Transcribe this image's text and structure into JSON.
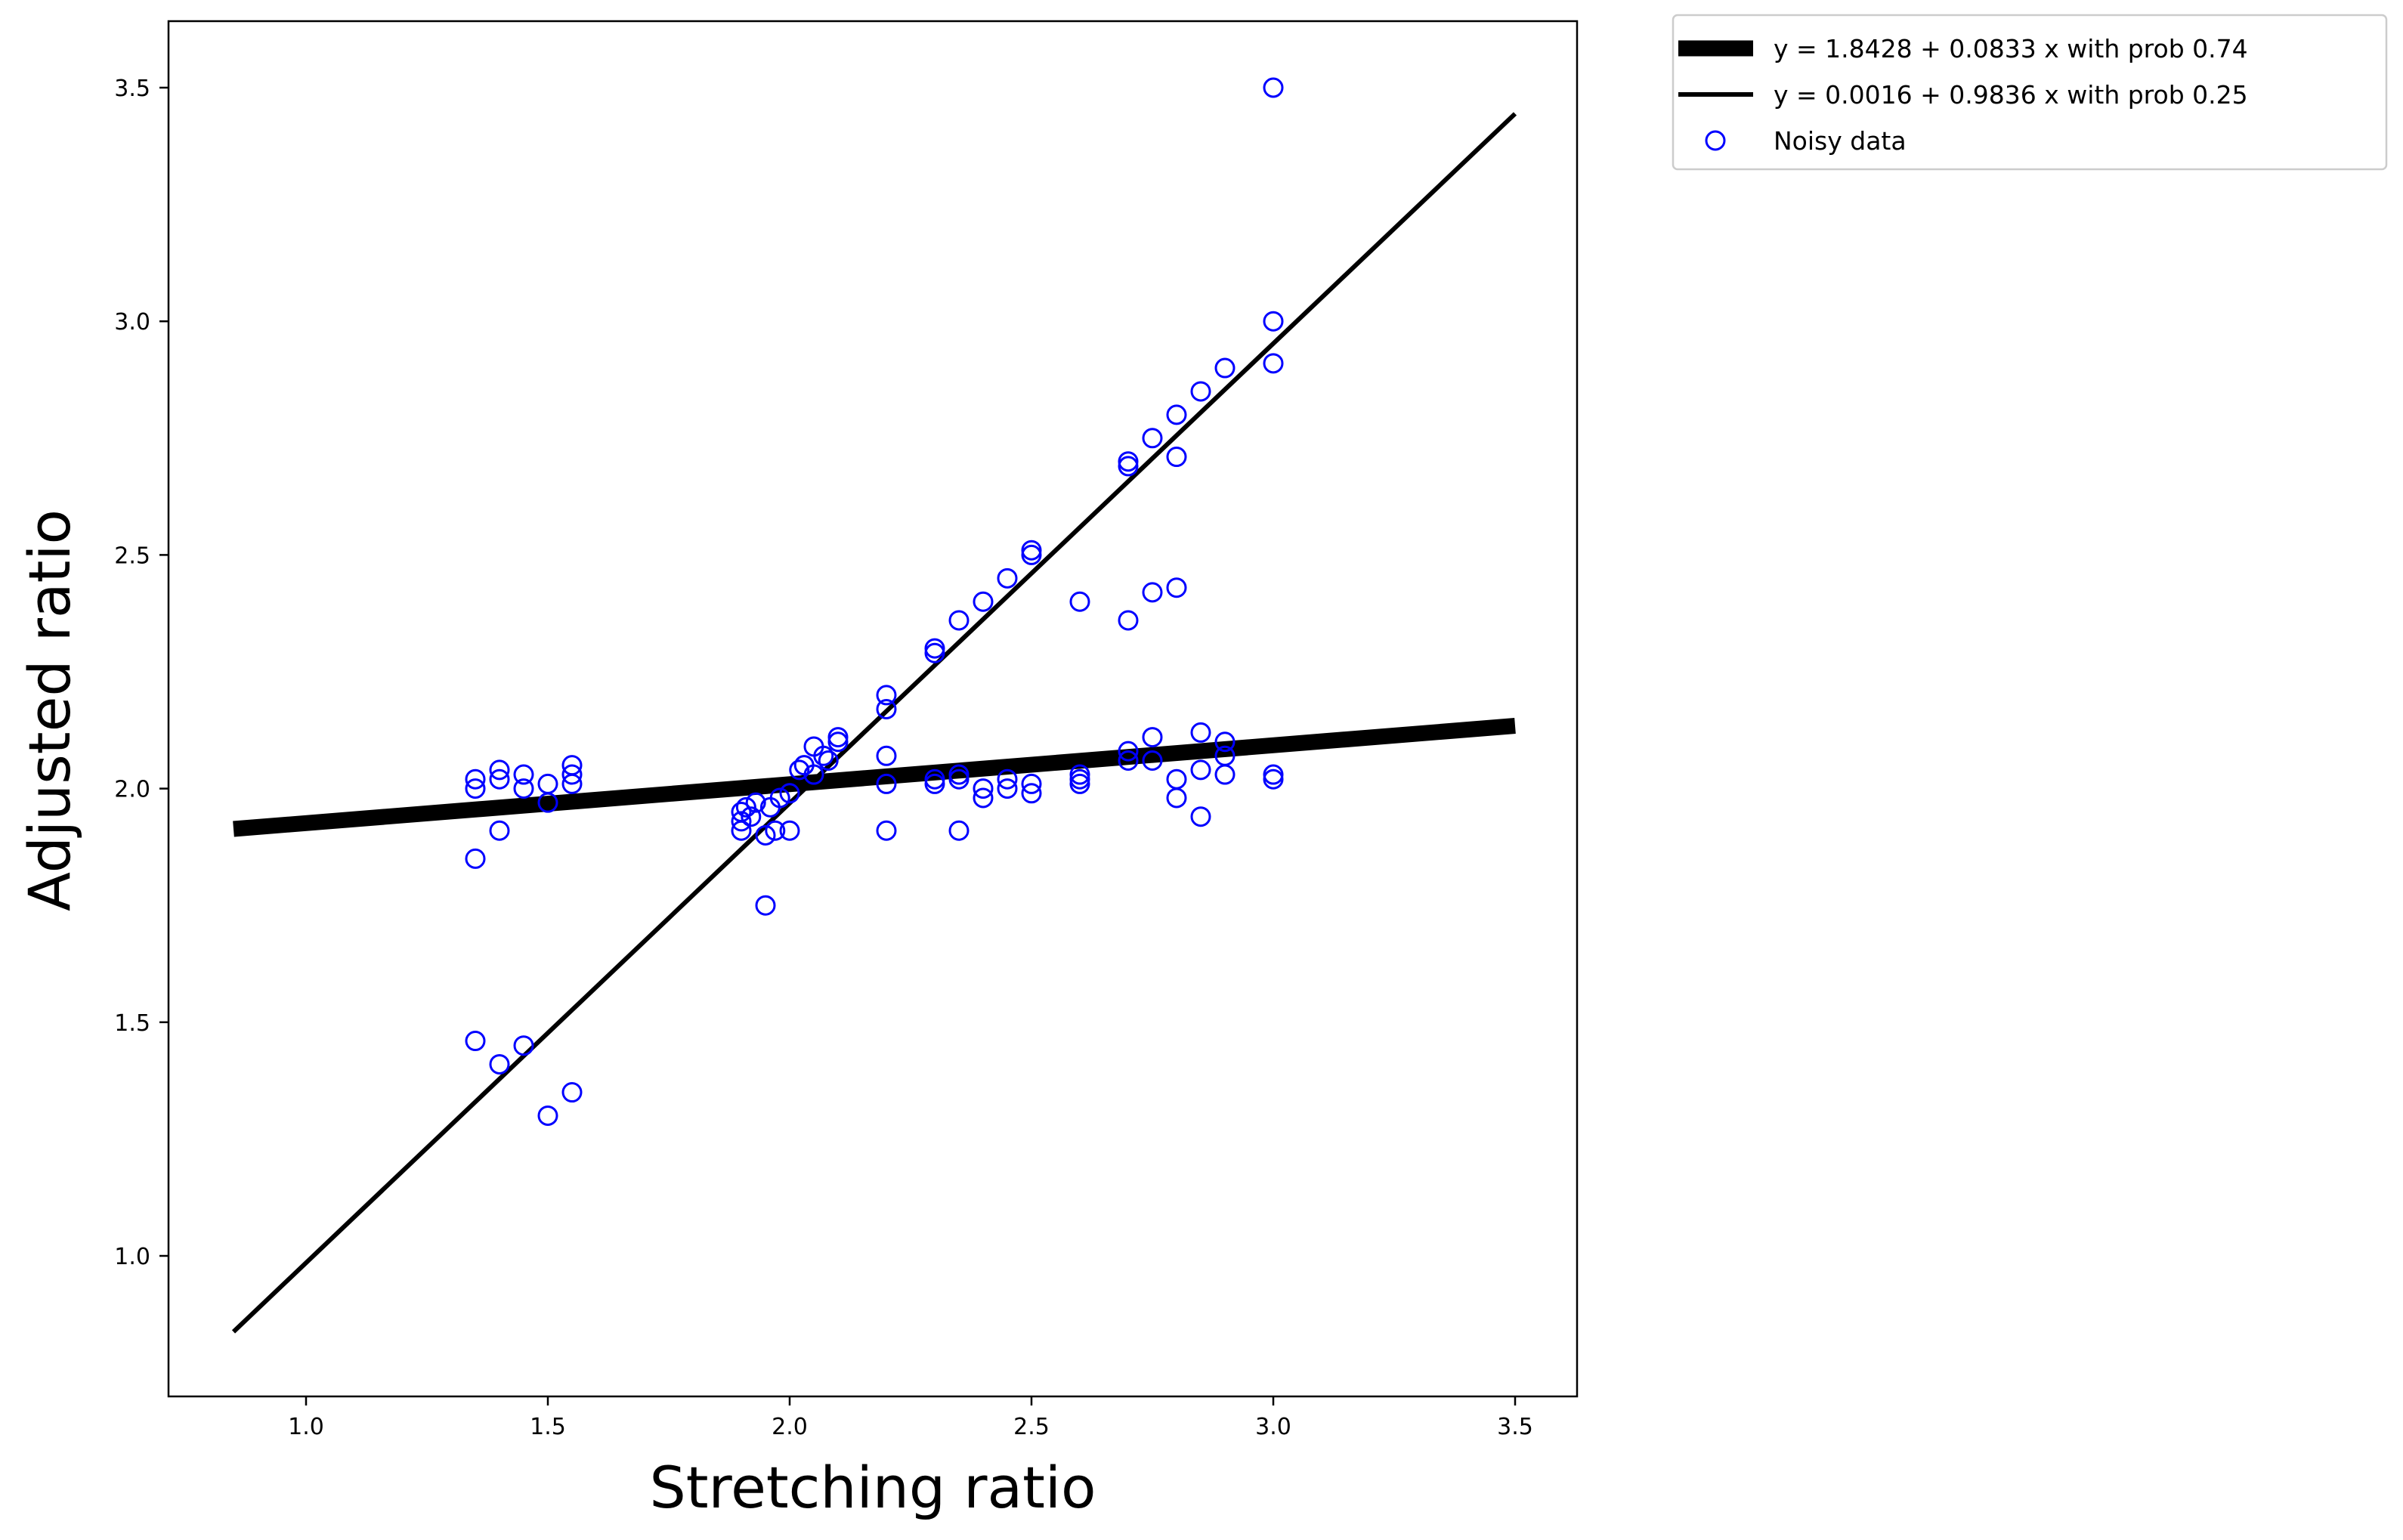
{
  "chart_data": {
    "type": "scatter",
    "xlabel": "Stretching ratio",
    "ylabel": "Adjusted ratio",
    "xlim": [
      0.7,
      3.65
    ],
    "ylim": [
      0.7,
      3.65
    ],
    "x_ticks": [
      "1.0",
      "1.5",
      "2.0",
      "2.5",
      "3.0",
      "3.5"
    ],
    "y_ticks": [
      "1.0",
      "1.5",
      "2.0",
      "2.5",
      "3.0",
      "3.5"
    ],
    "grid": false,
    "legend_position": "outside upper right",
    "lines": [
      {
        "label": "y = 1.8428 + 0.0833 x with prob 0.74",
        "intercept": 1.8428,
        "slope": 0.0833,
        "x_range": [
          0.85,
          3.5
        ],
        "color": "#000000",
        "style": "thick"
      },
      {
        "label": "y = 0.0016 + 0.9836 x with prob 0.25",
        "intercept": 0.0016,
        "slope": 0.9836,
        "x_range": [
          0.85,
          3.5
        ],
        "color": "#000000",
        "style": "thin"
      }
    ],
    "scatter": {
      "label": "Noisy data",
      "color": "#0000ff",
      "marker": "open circle",
      "points": [
        [
          1.35,
          2.02
        ],
        [
          1.35,
          2.0
        ],
        [
          1.35,
          1.85
        ],
        [
          1.35,
          1.46
        ],
        [
          1.4,
          2.04
        ],
        [
          1.4,
          2.02
        ],
        [
          1.4,
          1.91
        ],
        [
          1.4,
          1.41
        ],
        [
          1.45,
          2.03
        ],
        [
          1.45,
          2.0
        ],
        [
          1.45,
          1.45
        ],
        [
          1.5,
          2.01
        ],
        [
          1.5,
          1.97
        ],
        [
          1.5,
          1.3
        ],
        [
          1.55,
          2.05
        ],
        [
          1.55,
          2.03
        ],
        [
          1.55,
          2.01
        ],
        [
          1.55,
          1.35
        ],
        [
          1.9,
          1.95
        ],
        [
          1.9,
          1.93
        ],
        [
          1.9,
          1.91
        ],
        [
          1.91,
          1.96
        ],
        [
          1.92,
          1.94
        ],
        [
          1.93,
          1.97
        ],
        [
          1.95,
          1.9
        ],
        [
          1.95,
          1.75
        ],
        [
          1.96,
          1.96
        ],
        [
          1.97,
          1.91
        ],
        [
          1.98,
          1.98
        ],
        [
          2.0,
          1.91
        ],
        [
          2.0,
          1.99
        ],
        [
          2.02,
          2.04
        ],
        [
          2.03,
          2.05
        ],
        [
          2.05,
          2.09
        ],
        [
          2.05,
          2.03
        ],
        [
          2.07,
          2.07
        ],
        [
          2.08,
          2.06
        ],
        [
          2.1,
          2.11
        ],
        [
          2.1,
          2.1
        ],
        [
          2.2,
          2.2
        ],
        [
          2.2,
          2.17
        ],
        [
          2.2,
          2.07
        ],
        [
          2.2,
          2.01
        ],
        [
          2.2,
          1.91
        ],
        [
          2.3,
          2.3
        ],
        [
          2.3,
          2.29
        ],
        [
          2.3,
          2.02
        ],
        [
          2.3,
          2.01
        ],
        [
          2.35,
          2.36
        ],
        [
          2.35,
          2.03
        ],
        [
          2.35,
          2.02
        ],
        [
          2.35,
          1.91
        ],
        [
          2.4,
          2.4
        ],
        [
          2.4,
          2.0
        ],
        [
          2.4,
          1.98
        ],
        [
          2.45,
          2.45
        ],
        [
          2.45,
          2.02
        ],
        [
          2.45,
          2.0
        ],
        [
          2.5,
          2.51
        ],
        [
          2.5,
          2.5
        ],
        [
          2.5,
          2.01
        ],
        [
          2.5,
          1.99
        ],
        [
          2.6,
          2.4
        ],
        [
          2.6,
          2.03
        ],
        [
          2.6,
          2.02
        ],
        [
          2.6,
          2.01
        ],
        [
          2.7,
          2.7
        ],
        [
          2.7,
          2.69
        ],
        [
          2.7,
          2.36
        ],
        [
          2.7,
          2.08
        ],
        [
          2.7,
          2.06
        ],
        [
          2.75,
          2.75
        ],
        [
          2.75,
          2.42
        ],
        [
          2.75,
          2.11
        ],
        [
          2.75,
          2.06
        ],
        [
          2.8,
          2.8
        ],
        [
          2.8,
          2.71
        ],
        [
          2.8,
          2.43
        ],
        [
          2.8,
          2.02
        ],
        [
          2.8,
          1.98
        ],
        [
          2.85,
          2.85
        ],
        [
          2.85,
          2.12
        ],
        [
          2.85,
          2.04
        ],
        [
          2.85,
          1.94
        ],
        [
          2.9,
          2.9
        ],
        [
          2.9,
          2.1
        ],
        [
          2.9,
          2.07
        ],
        [
          2.9,
          2.03
        ],
        [
          3.0,
          3.5
        ],
        [
          3.0,
          3.0
        ],
        [
          3.0,
          2.91
        ],
        [
          3.0,
          2.03
        ],
        [
          3.0,
          2.02
        ]
      ]
    }
  }
}
